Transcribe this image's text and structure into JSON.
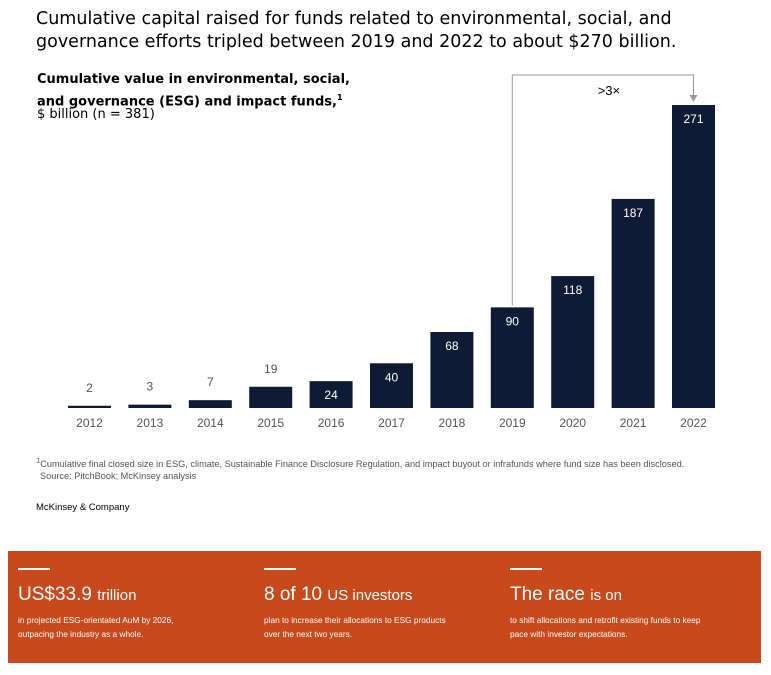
{
  "headline": "Cumulative capital raised for funds related to environmental, social, and governance efforts tripled between 2019 and 2022 to about $270 billion.",
  "chart_data": {
    "type": "bar",
    "subtitle_line1": "Cumulative value in environmental, social,",
    "subtitle_line2": "and governance (ESG) and impact funds,",
    "subtitle_sup": "1",
    "units": "$ billion (n = 381)",
    "categories": [
      "2012",
      "2013",
      "2014",
      "2015",
      "2016",
      "2017",
      "2018",
      "2019",
      "2020",
      "2021",
      "2022"
    ],
    "values": [
      2,
      3,
      7,
      19,
      24,
      40,
      68,
      90,
      118,
      187,
      271
    ],
    "ylim": [
      0,
      271
    ],
    "bar_color": "#0f1b35",
    "annotation": {
      "label": ">3×",
      "from": "2019",
      "to": "2022"
    }
  },
  "footnote": {
    "sup": "1",
    "text": "Cumulative final closed size in ESG, climate, Sustainable Finance Disclosure Regulation, and impact buyout or infrafunds where fund size has been disclosed.",
    "source": "Source: PitchBook; McKinsey analysis"
  },
  "brand": "McKinsey & Company",
  "banner": {
    "color": "#c8491c",
    "stats": [
      {
        "big": "US$33.9",
        "small": "trillion",
        "desc1": "in projected ESG-orientated AuM by 2026,",
        "desc2": "outpacing the industry as a whole."
      },
      {
        "big": "8 of 10",
        "small": "US investors",
        "desc1": "plan to increase their allocations to ESG products",
        "desc2": "over the next two years."
      },
      {
        "big": "The race",
        "small": "is on",
        "desc1": "to shift allocations and retrofit existing funds to keep",
        "desc2": "pace with investor expectations."
      }
    ]
  }
}
